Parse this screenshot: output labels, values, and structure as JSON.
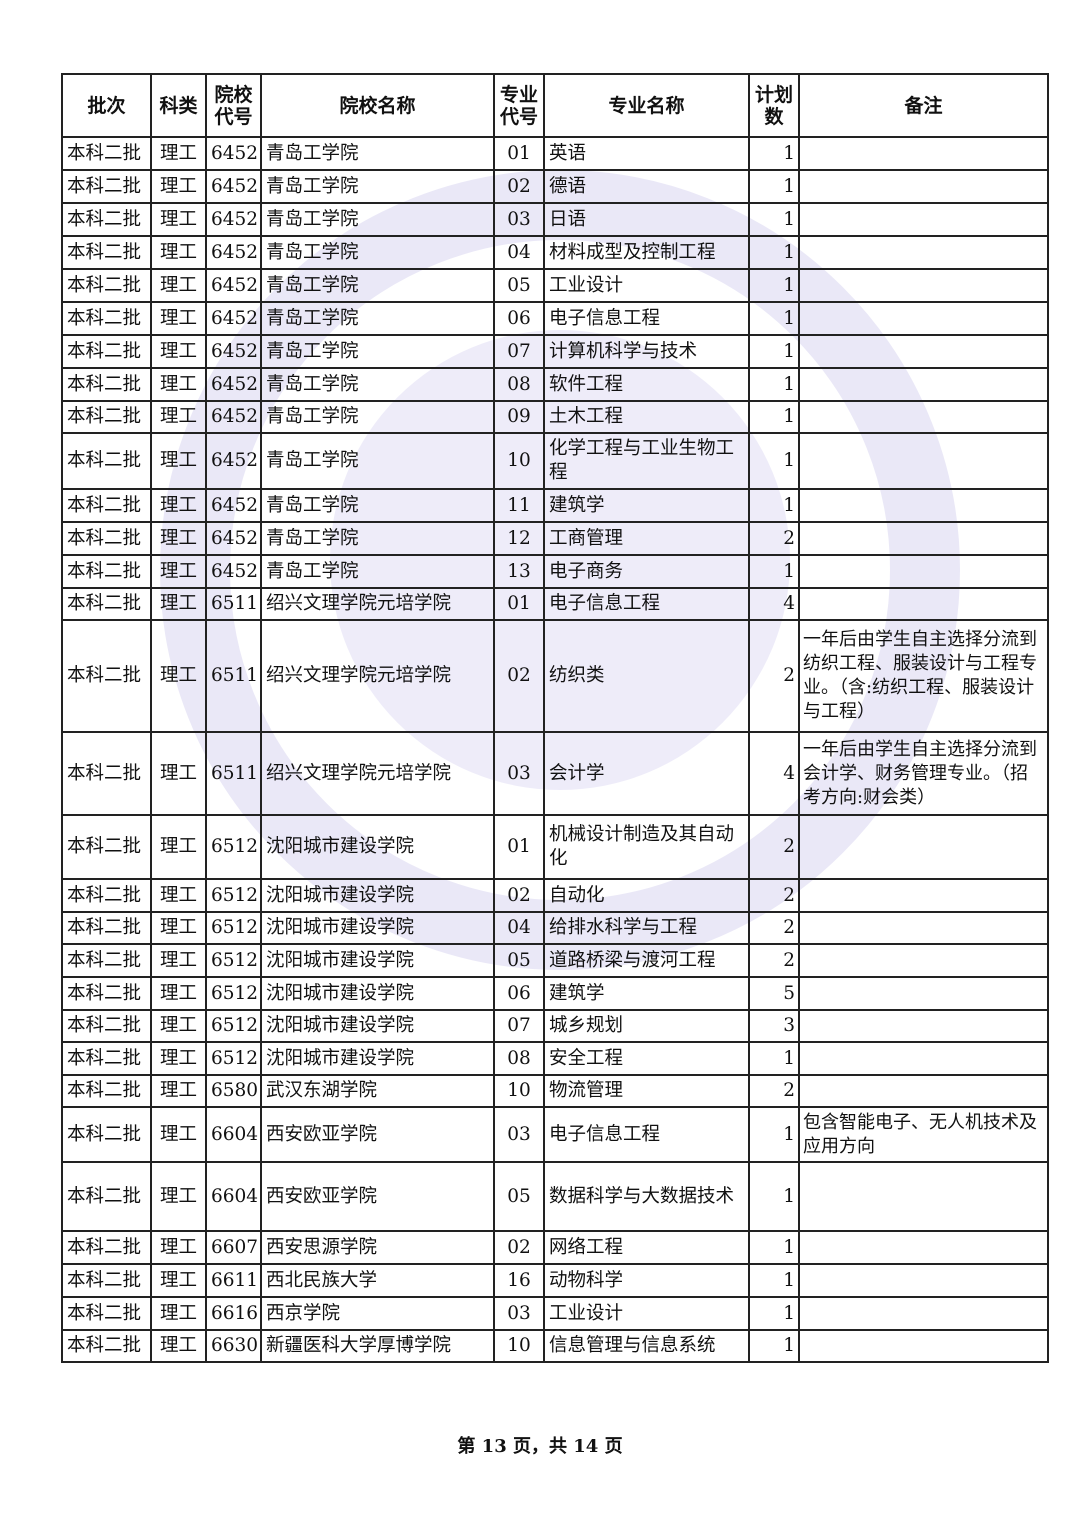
{
  "headers": [
    "批次",
    "科类",
    "院校代号",
    "院校名称",
    "专业代号",
    "专业名称",
    "计划数",
    "备注"
  ],
  "rows": [
    [
      "本科二批",
      "理工",
      "6452",
      "青岛工学院",
      "01",
      "英语",
      "1",
      ""
    ],
    [
      "本科二批",
      "理工",
      "6452",
      "青岛工学院",
      "02",
      "德语",
      "1",
      ""
    ],
    [
      "本科二批",
      "理工",
      "6452",
      "青岛工学院",
      "03",
      "日语",
      "1",
      ""
    ],
    [
      "本科二批",
      "理工",
      "6452",
      "青岛工学院",
      "04",
      "材料成型及控制工程",
      "1",
      ""
    ],
    [
      "本科二批",
      "理工",
      "6452",
      "青岛工学院",
      "05",
      "工业设计",
      "1",
      ""
    ],
    [
      "本科二批",
      "理工",
      "6452",
      "青岛工学院",
      "06",
      "电子信息工程",
      "1",
      ""
    ],
    [
      "本科二批",
      "理工",
      "6452",
      "青岛工学院",
      "07",
      "计算机科学与技术",
      "1",
      ""
    ],
    [
      "本科二批",
      "理工",
      "6452",
      "青岛工学院",
      "08",
      "软件工程",
      "1",
      ""
    ],
    [
      "本科二批",
      "理工",
      "6452",
      "青岛工学院",
      "09",
      "土木工程",
      "1",
      ""
    ],
    [
      "本科二批",
      "理工",
      "6452",
      "青岛工学院",
      "10",
      "化学工程与工业生物工程",
      "1",
      ""
    ],
    [
      "本科二批",
      "理工",
      "6452",
      "青岛工学院",
      "11",
      "建筑学",
      "1",
      ""
    ],
    [
      "本科二批",
      "理工",
      "6452",
      "青岛工学院",
      "12",
      "工商管理",
      "2",
      ""
    ],
    [
      "本科二批",
      "理工",
      "6452",
      "青岛工学院",
      "13",
      "电子商务",
      "1",
      ""
    ],
    [
      "本科二批",
      "理工",
      "6511",
      "绍兴文理学院元培学院",
      "01",
      "电子信息工程",
      "4",
      ""
    ],
    [
      "本科二批",
      "理工",
      "6511",
      "绍兴文理学院元培学院",
      "02",
      "纺织类",
      "2",
      "一年后由学生自主选择分流到纺织工程、服装设计与工程专业。（含:纺织工程、服装设计与工程）"
    ],
    [
      "本科二批",
      "理工",
      "6511",
      "绍兴文理学院元培学院",
      "03",
      "会计学",
      "4",
      "一年后由学生自主选择分流到会计学、财务管理专业。（招考方向:财会类）"
    ],
    [
      "本科二批",
      "理工",
      "6512",
      "沈阳城市建设学院",
      "01",
      "机械设计制造及其自动化",
      "2",
      ""
    ],
    [
      "本科二批",
      "理工",
      "6512",
      "沈阳城市建设学院",
      "02",
      "自动化",
      "2",
      ""
    ],
    [
      "本科二批",
      "理工",
      "6512",
      "沈阳城市建设学院",
      "04",
      "给排水科学与工程",
      "2",
      ""
    ],
    [
      "本科二批",
      "理工",
      "6512",
      "沈阳城市建设学院",
      "05",
      "道路桥梁与渡河工程",
      "2",
      ""
    ],
    [
      "本科二批",
      "理工",
      "6512",
      "沈阳城市建设学院",
      "06",
      "建筑学",
      "5",
      ""
    ],
    [
      "本科二批",
      "理工",
      "6512",
      "沈阳城市建设学院",
      "07",
      "城乡规划",
      "3",
      ""
    ],
    [
      "本科二批",
      "理工",
      "6512",
      "沈阳城市建设学院",
      "08",
      "安全工程",
      "1",
      ""
    ],
    [
      "本科二批",
      "理工",
      "6580",
      "武汉东湖学院",
      "10",
      "物流管理",
      "2",
      ""
    ],
    [
      "本科二批",
      "理工",
      "6604",
      "西安欧亚学院",
      "03",
      "电子信息工程",
      "1",
      "包含智能电子、无人机技术及应用方向"
    ],
    [
      "本科二批",
      "理工",
      "6604",
      "西安欧亚学院",
      "05",
      "数据科学与大数据技术",
      "1",
      ""
    ],
    [
      "本科二批",
      "理工",
      "6607",
      "西安思源学院",
      "02",
      "网络工程",
      "1",
      ""
    ],
    [
      "本科二批",
      "理工",
      "6611",
      "西北民族大学",
      "16",
      "动物科学",
      "1",
      ""
    ],
    [
      "本科二批",
      "理工",
      "6616",
      "西京学院",
      "03",
      "工业设计",
      "1",
      ""
    ],
    [
      "本科二批",
      "理工",
      "6630",
      "新疆医科大学厚博学院",
      "10",
      "信息管理与信息系统",
      "1",
      ""
    ]
  ],
  "footer": "第 13 页，共 14 页",
  "watermark_color": "#a096dc"
}
